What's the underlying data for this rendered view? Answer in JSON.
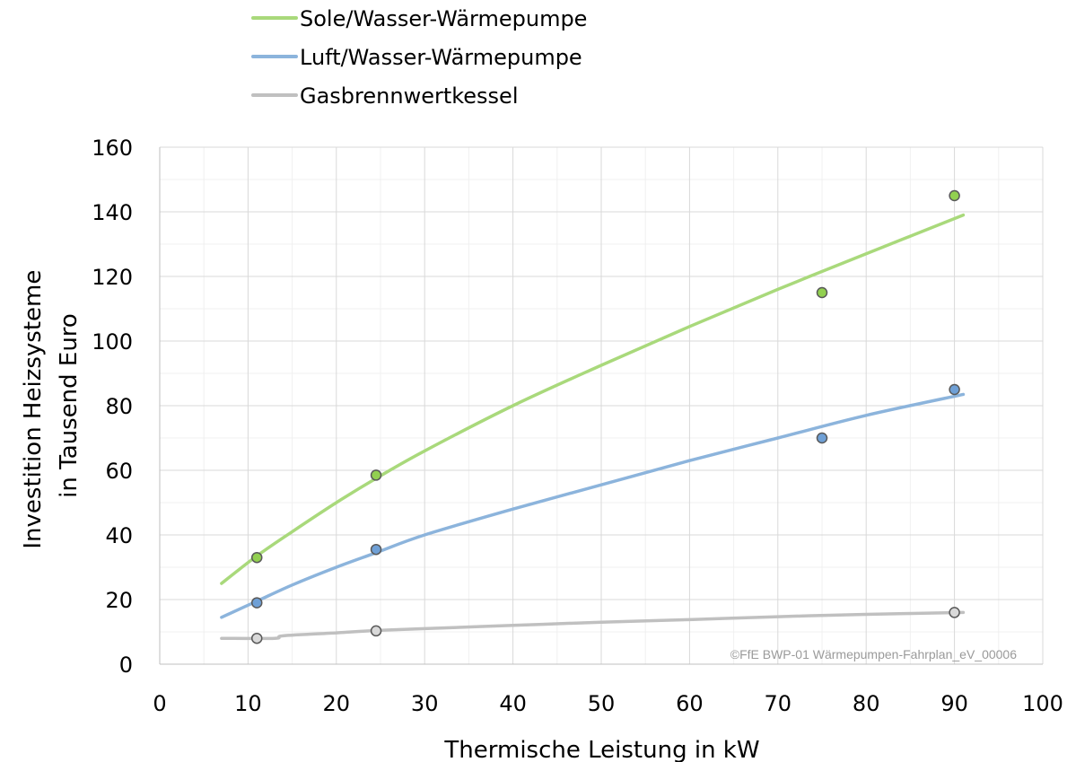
{
  "chart_data": {
    "type": "scatter",
    "xlabel": "Thermische Leistung in kW",
    "ylabel": [
      "Investition Heizsysteme",
      "in Tausend Euro"
    ],
    "xlim": [
      0,
      100
    ],
    "ylim": [
      0,
      160
    ],
    "x_ticks": [
      0,
      10,
      20,
      30,
      40,
      50,
      60,
      70,
      80,
      90,
      100
    ],
    "y_ticks": [
      0,
      20,
      40,
      60,
      80,
      100,
      120,
      140,
      160
    ],
    "grid": true,
    "legend_position": "top-left",
    "watermark": "©FfE BWP-01 Wärmepumpen-Fahrplan_eV_00006",
    "series": [
      {
        "name": "Sole/Wasser-Wärmepumpe",
        "color": "#a9d97b",
        "marker_color": "#92d050",
        "points": [
          [
            11,
            33
          ],
          [
            24.5,
            58.5
          ],
          [
            75,
            115
          ],
          [
            90,
            145
          ]
        ],
        "trend": [
          [
            7,
            25
          ],
          [
            11,
            33.5
          ],
          [
            15,
            41
          ],
          [
            20,
            50
          ],
          [
            24.5,
            57.5
          ],
          [
            30,
            66
          ],
          [
            40,
            80
          ],
          [
            50,
            92.5
          ],
          [
            60,
            104.5
          ],
          [
            70,
            116
          ],
          [
            80,
            127
          ],
          [
            91,
            139
          ]
        ]
      },
      {
        "name": "Luft/Wasser-Wärmepumpe",
        "color": "#8cb4dc",
        "marker_color": "#6fa0d6",
        "points": [
          [
            11,
            19
          ],
          [
            24.5,
            35.5
          ],
          [
            75,
            70
          ],
          [
            90,
            85
          ]
        ],
        "trend": [
          [
            7,
            14.5
          ],
          [
            11,
            19.5
          ],
          [
            15,
            24.5
          ],
          [
            20,
            30
          ],
          [
            24.5,
            34.5
          ],
          [
            30,
            40
          ],
          [
            40,
            48
          ],
          [
            50,
            55.5
          ],
          [
            60,
            63
          ],
          [
            70,
            70
          ],
          [
            80,
            77
          ],
          [
            91,
            83.5
          ]
        ]
      },
      {
        "name": "Gasbrennwertkessel",
        "color": "#c0c0c0",
        "marker_color": "#d9d9d9",
        "points": [
          [
            11,
            8
          ],
          [
            24.5,
            10.3
          ],
          [
            90,
            16
          ]
        ],
        "trend": [
          [
            7,
            8
          ],
          [
            13,
            8
          ],
          [
            14,
            8.8
          ],
          [
            20,
            9.7
          ],
          [
            24.5,
            10.4
          ],
          [
            30,
            11
          ],
          [
            40,
            12
          ],
          [
            50,
            13
          ],
          [
            60,
            13.8
          ],
          [
            70,
            14.7
          ],
          [
            80,
            15.4
          ],
          [
            91,
            16
          ]
        ]
      }
    ]
  }
}
